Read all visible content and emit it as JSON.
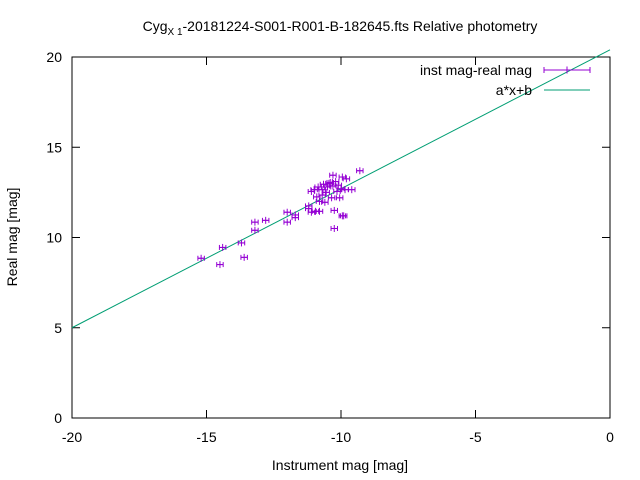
{
  "chart_data": {
    "type": "scatter",
    "title_prefix": "Cyg",
    "title_subscript": "X 1",
    "title_suffix": "-20181224-S001-R001-B-182645.fts Relative photometry",
    "xlabel": "Instrument mag [mag]",
    "ylabel": "Real mag [mag]",
    "xlim": [
      -20,
      0
    ],
    "ylim": [
      0,
      20
    ],
    "xticks": [
      -20,
      -15,
      -10,
      -5,
      0
    ],
    "yticks": [
      0,
      5,
      10,
      15,
      20
    ],
    "grid": false,
    "legend_position": "top-right",
    "series": [
      {
        "name": "inst mag-real mag",
        "kind": "points-with-xerror",
        "color": "#9400d3",
        "points": [
          [
            -15.2,
            8.85
          ],
          [
            -14.5,
            8.5
          ],
          [
            -14.4,
            9.45
          ],
          [
            -13.6,
            8.9
          ],
          [
            -13.7,
            9.7
          ],
          [
            -13.2,
            10.4
          ],
          [
            -13.2,
            10.85
          ],
          [
            -12.8,
            10.95
          ],
          [
            -12.0,
            10.85
          ],
          [
            -12.0,
            11.4
          ],
          [
            -11.7,
            11.1
          ],
          [
            -11.7,
            11.25
          ],
          [
            -11.2,
            11.6
          ],
          [
            -11.2,
            11.75
          ],
          [
            -11.1,
            11.4
          ],
          [
            -11.1,
            12.55
          ],
          [
            -11.0,
            12.65
          ],
          [
            -10.95,
            11.45
          ],
          [
            -10.9,
            12.25
          ],
          [
            -10.85,
            12.8
          ],
          [
            -10.8,
            11.45
          ],
          [
            -10.8,
            12.0
          ],
          [
            -10.7,
            12.35
          ],
          [
            -10.7,
            12.65
          ],
          [
            -10.65,
            12.95
          ],
          [
            -10.6,
            11.95
          ],
          [
            -10.55,
            12.5
          ],
          [
            -10.5,
            12.8
          ],
          [
            -10.45,
            13.0
          ],
          [
            -10.4,
            13.05
          ],
          [
            -10.35,
            12.2
          ],
          [
            -10.3,
            12.85
          ],
          [
            -10.3,
            13.45
          ],
          [
            -10.25,
            10.5
          ],
          [
            -10.25,
            11.5
          ],
          [
            -10.2,
            13.1
          ],
          [
            -10.15,
            12.55
          ],
          [
            -10.1,
            12.9
          ],
          [
            -10.05,
            12.2
          ],
          [
            -10.0,
            12.7
          ],
          [
            -9.95,
            13.35
          ],
          [
            -9.95,
            11.2
          ],
          [
            -9.9,
            11.2
          ],
          [
            -9.85,
            12.65
          ],
          [
            -9.8,
            13.25
          ],
          [
            -9.6,
            12.65
          ],
          [
            -9.3,
            13.7
          ]
        ],
        "xerr": 0.12
      },
      {
        "name": "a*x+b",
        "kind": "line",
        "color": "#009e73",
        "x": [
          -20,
          0
        ],
        "y": [
          5.0,
          20.4
        ]
      }
    ]
  }
}
